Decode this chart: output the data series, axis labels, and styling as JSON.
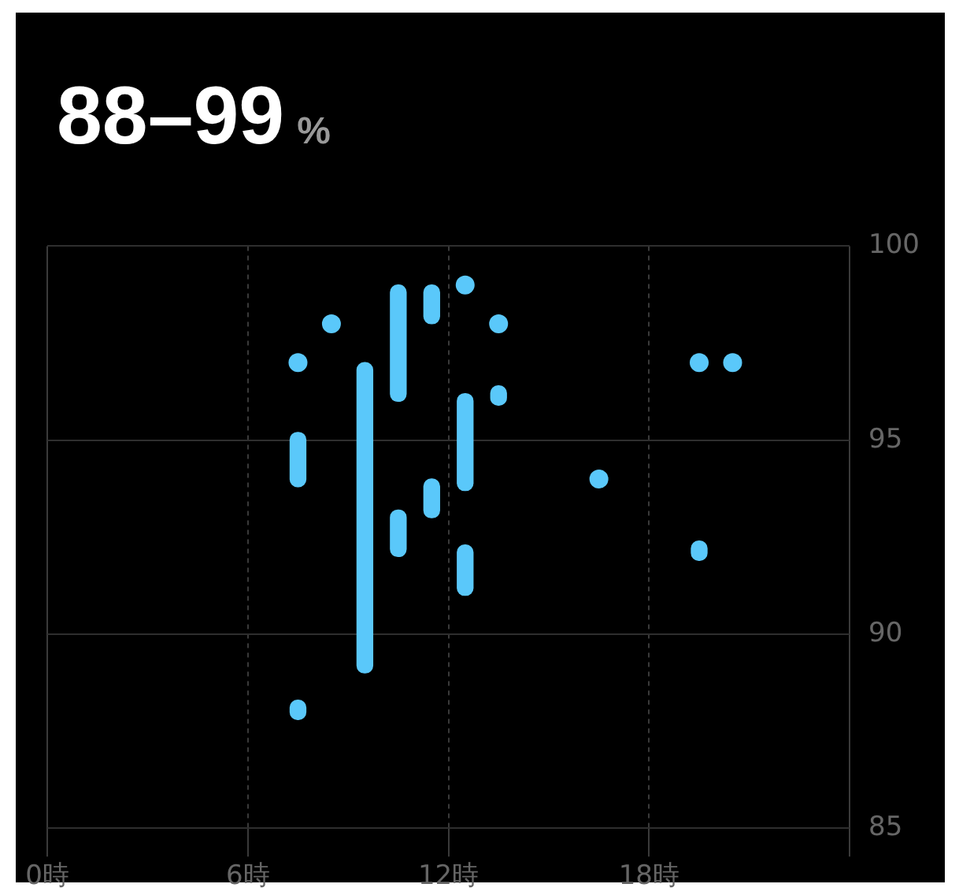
{
  "chart_data": {
    "type": "bar",
    "title": "88–99",
    "subtitle": "%",
    "series": [
      {
        "color": "#5ac8fa",
        "x": [
          7.5,
          9.5,
          10.5,
          11.5,
          12.5,
          13.5,
          19.5
        ],
        "base": [
          93.8,
          89,
          96,
          98,
          93.7,
          95.9,
          91.9
        ],
        "values": [
          1.4,
          8,
          3,
          1,
          2.5,
          0.5,
          0.5
        ]
      },
      {
        "color": "#5ac8fa",
        "x": [
          7.5,
          10.5,
          11.5,
          12.5
        ],
        "base": [
          87.8,
          92,
          93,
          91
        ],
        "values": [
          0.5,
          1.2,
          1,
          1.3
        ]
      },
      {
        "type": "scatter",
        "marker": "circle",
        "color": "#5ac8fa",
        "x": [
          7.5,
          8.5,
          12.5,
          13.5,
          16.5,
          19.5,
          20.5
        ],
        "values": [
          97,
          98,
          99,
          98,
          94,
          97,
          97
        ]
      }
    ],
    "xlim": [
      0,
      24
    ],
    "xticks": [
      {
        "value": 0,
        "label": "0時"
      },
      {
        "value": 6,
        "label": "6時"
      },
      {
        "value": 12,
        "label": "12時"
      },
      {
        "value": 18,
        "label": "18時"
      },
      {
        "value": 24,
        "label": null
      }
    ],
    "ylim": [
      85,
      100
    ],
    "yticks": [
      85,
      90,
      95,
      100
    ],
    "grid": true,
    "legend": false
  }
}
